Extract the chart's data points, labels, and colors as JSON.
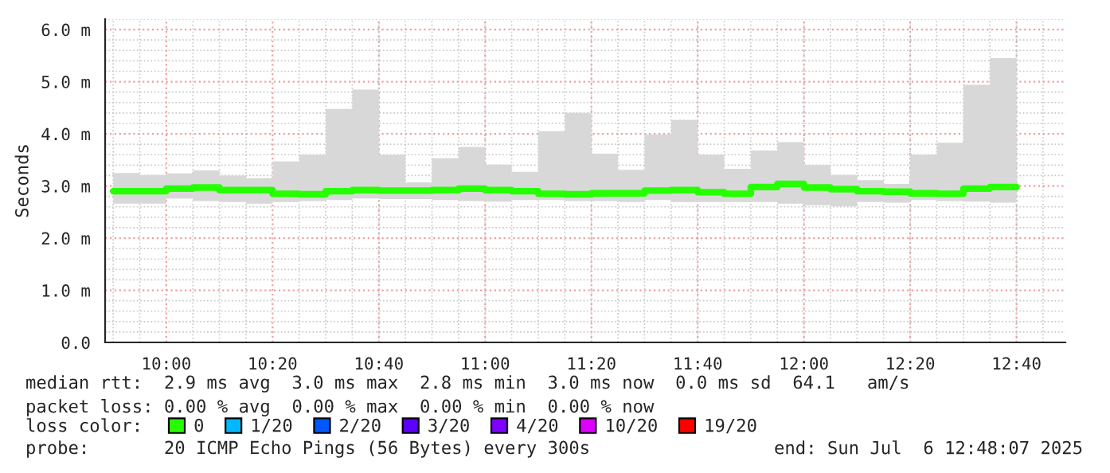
{
  "chart_data": {
    "type": "step",
    "ylabel": "Seconds",
    "x": [
      9.8333,
      9.9167,
      10.0,
      10.0833,
      10.1667,
      10.25,
      10.3333,
      10.4167,
      10.5,
      10.5833,
      10.6667,
      10.75,
      10.8333,
      10.9167,
      11.0,
      11.0833,
      11.1667,
      11.25,
      11.3333,
      11.4167,
      11.5,
      11.5833,
      11.6667,
      11.75,
      11.8333,
      11.9167,
      12.0,
      12.0833,
      12.1667,
      12.25,
      12.3333,
      12.4167,
      12.5,
      12.5833,
      12.6667
    ],
    "series": [
      {
        "name": "0",
        "color": "#26ff00",
        "values": [
          2.9,
          2.9,
          2.9,
          2.95,
          2.97,
          2.92,
          2.92,
          2.85,
          2.84,
          2.9,
          2.92,
          2.91,
          2.91,
          2.92,
          2.95,
          2.92,
          2.9,
          2.85,
          2.84,
          2.86,
          2.86,
          2.91,
          2.92,
          2.88,
          2.85,
          2.98,
          3.04,
          2.97,
          2.94,
          2.9,
          2.89,
          2.86,
          2.85,
          2.95,
          2.98
        ],
        "lower": [
          2.71,
          2.66,
          2.66,
          2.76,
          2.71,
          2.69,
          2.66,
          2.69,
          2.71,
          2.73,
          2.76,
          2.75,
          2.75,
          2.73,
          2.71,
          2.7,
          2.73,
          2.73,
          2.71,
          2.71,
          2.69,
          2.73,
          2.69,
          2.69,
          2.69,
          2.69,
          2.66,
          2.63,
          2.61,
          2.69,
          2.68,
          2.73,
          2.71,
          2.7,
          2.68
        ],
        "upper": [
          3.41,
          3.25,
          3.21,
          3.24,
          3.3,
          3.2,
          3.15,
          3.47,
          3.6,
          4.48,
          4.85,
          3.6,
          3.07,
          3.53,
          3.75,
          3.41,
          3.27,
          4.05,
          4.4,
          3.62,
          3.31,
          3.99,
          4.27,
          3.6,
          3.33,
          3.68,
          3.84,
          3.4,
          3.21,
          3.11,
          3.04,
          3.6,
          3.83,
          4.94,
          5.45
        ]
      },
      {
        "name": "1/20",
        "color": "#00b8ff",
        "values": [
          null,
          null,
          null,
          null,
          null,
          null,
          null,
          null,
          null,
          null,
          null,
          null,
          null,
          null,
          null,
          null,
          null,
          null,
          null,
          null,
          null,
          null,
          null,
          null,
          null,
          null,
          null,
          null,
          null,
          null,
          null,
          null,
          null,
          null,
          null
        ]
      },
      {
        "name": "2/20",
        "color": "#0059ff",
        "values": [
          null,
          null,
          null,
          null,
          null,
          null,
          null,
          null,
          null,
          null,
          null,
          null,
          null,
          null,
          null,
          null,
          null,
          null,
          null,
          null,
          null,
          null,
          null,
          null,
          null,
          null,
          null,
          null,
          null,
          null,
          null,
          null,
          null,
          null,
          null
        ]
      },
      {
        "name": "3/20",
        "color": "#5e00ff",
        "values": [
          null,
          null,
          null,
          null,
          null,
          null,
          null,
          null,
          null,
          null,
          null,
          null,
          null,
          null,
          null,
          null,
          null,
          null,
          null,
          null,
          null,
          null,
          null,
          null,
          null,
          null,
          null,
          null,
          null,
          null,
          null,
          null,
          null,
          null,
          null
        ]
      },
      {
        "name": "4/20",
        "color": "#7e00ff",
        "values": [
          null,
          null,
          null,
          null,
          null,
          null,
          null,
          null,
          null,
          null,
          null,
          null,
          null,
          null,
          null,
          null,
          null,
          null,
          null,
          null,
          null,
          null,
          null,
          null,
          null,
          null,
          null,
          null,
          null,
          null,
          null,
          null,
          null,
          null,
          null
        ]
      },
      {
        "name": "10/20",
        "color": "#dd00ff",
        "values": [
          null,
          null,
          null,
          null,
          null,
          null,
          null,
          null,
          null,
          null,
          null,
          null,
          null,
          null,
          null,
          null,
          null,
          null,
          null,
          null,
          null,
          null,
          null,
          null,
          null,
          null,
          null,
          null,
          null,
          null,
          null,
          null,
          null,
          null,
          null
        ]
      },
      {
        "name": "19/20",
        "color": "#ff0000",
        "values": [
          null,
          null,
          null,
          null,
          null,
          null,
          null,
          null,
          null,
          null,
          null,
          null,
          null,
          null,
          null,
          null,
          null,
          null,
          null,
          null,
          null,
          null,
          null,
          null,
          null,
          null,
          null,
          null,
          null,
          null,
          null,
          null,
          null,
          null,
          null
        ]
      }
    ],
    "legend_title": "loss color:",
    "legend": "bottom",
    "xlim": [
      9.808,
      12.82
    ],
    "xticks": [
      {
        "value": 10.0,
        "label": "10:00"
      },
      {
        "value": 10.3333,
        "label": "10:20"
      },
      {
        "value": 10.6667,
        "label": "10:40"
      },
      {
        "value": 11.0,
        "label": "11:00"
      },
      {
        "value": 11.3333,
        "label": "11:20"
      },
      {
        "value": 11.6667,
        "label": "11:40"
      },
      {
        "value": 12.0,
        "label": "12:00"
      },
      {
        "value": 12.3333,
        "label": "12:20"
      },
      {
        "value": 12.6667,
        "label": "12:40"
      }
    ],
    "ylim": [
      0,
      6.2
    ],
    "yticks": [
      {
        "value": 0,
        "label": "0.0"
      },
      {
        "value": 1,
        "label": "1.0 m"
      },
      {
        "value": 2,
        "label": "2.0 m"
      },
      {
        "value": 3,
        "label": "3.0 m"
      },
      {
        "value": 4,
        "label": "4.0 m"
      },
      {
        "value": 5,
        "label": "5.0 m"
      },
      {
        "value": 6,
        "label": "6.0 m"
      }
    ],
    "grid": true,
    "annotations": [
      "median rtt:  2.9 ms avg  3.0 ms max  2.8 ms min  3.0 ms now  0.0 ms sd  64.1   am/s",
      "packet loss: 0.00 % avg  0.00 % max  0.00 % min  0.00 % now",
      "probe:       20 ICMP Echo Pings (56 Bytes) every 300s",
      "end: Sun Jul  6 12:48:07 2025"
    ]
  }
}
